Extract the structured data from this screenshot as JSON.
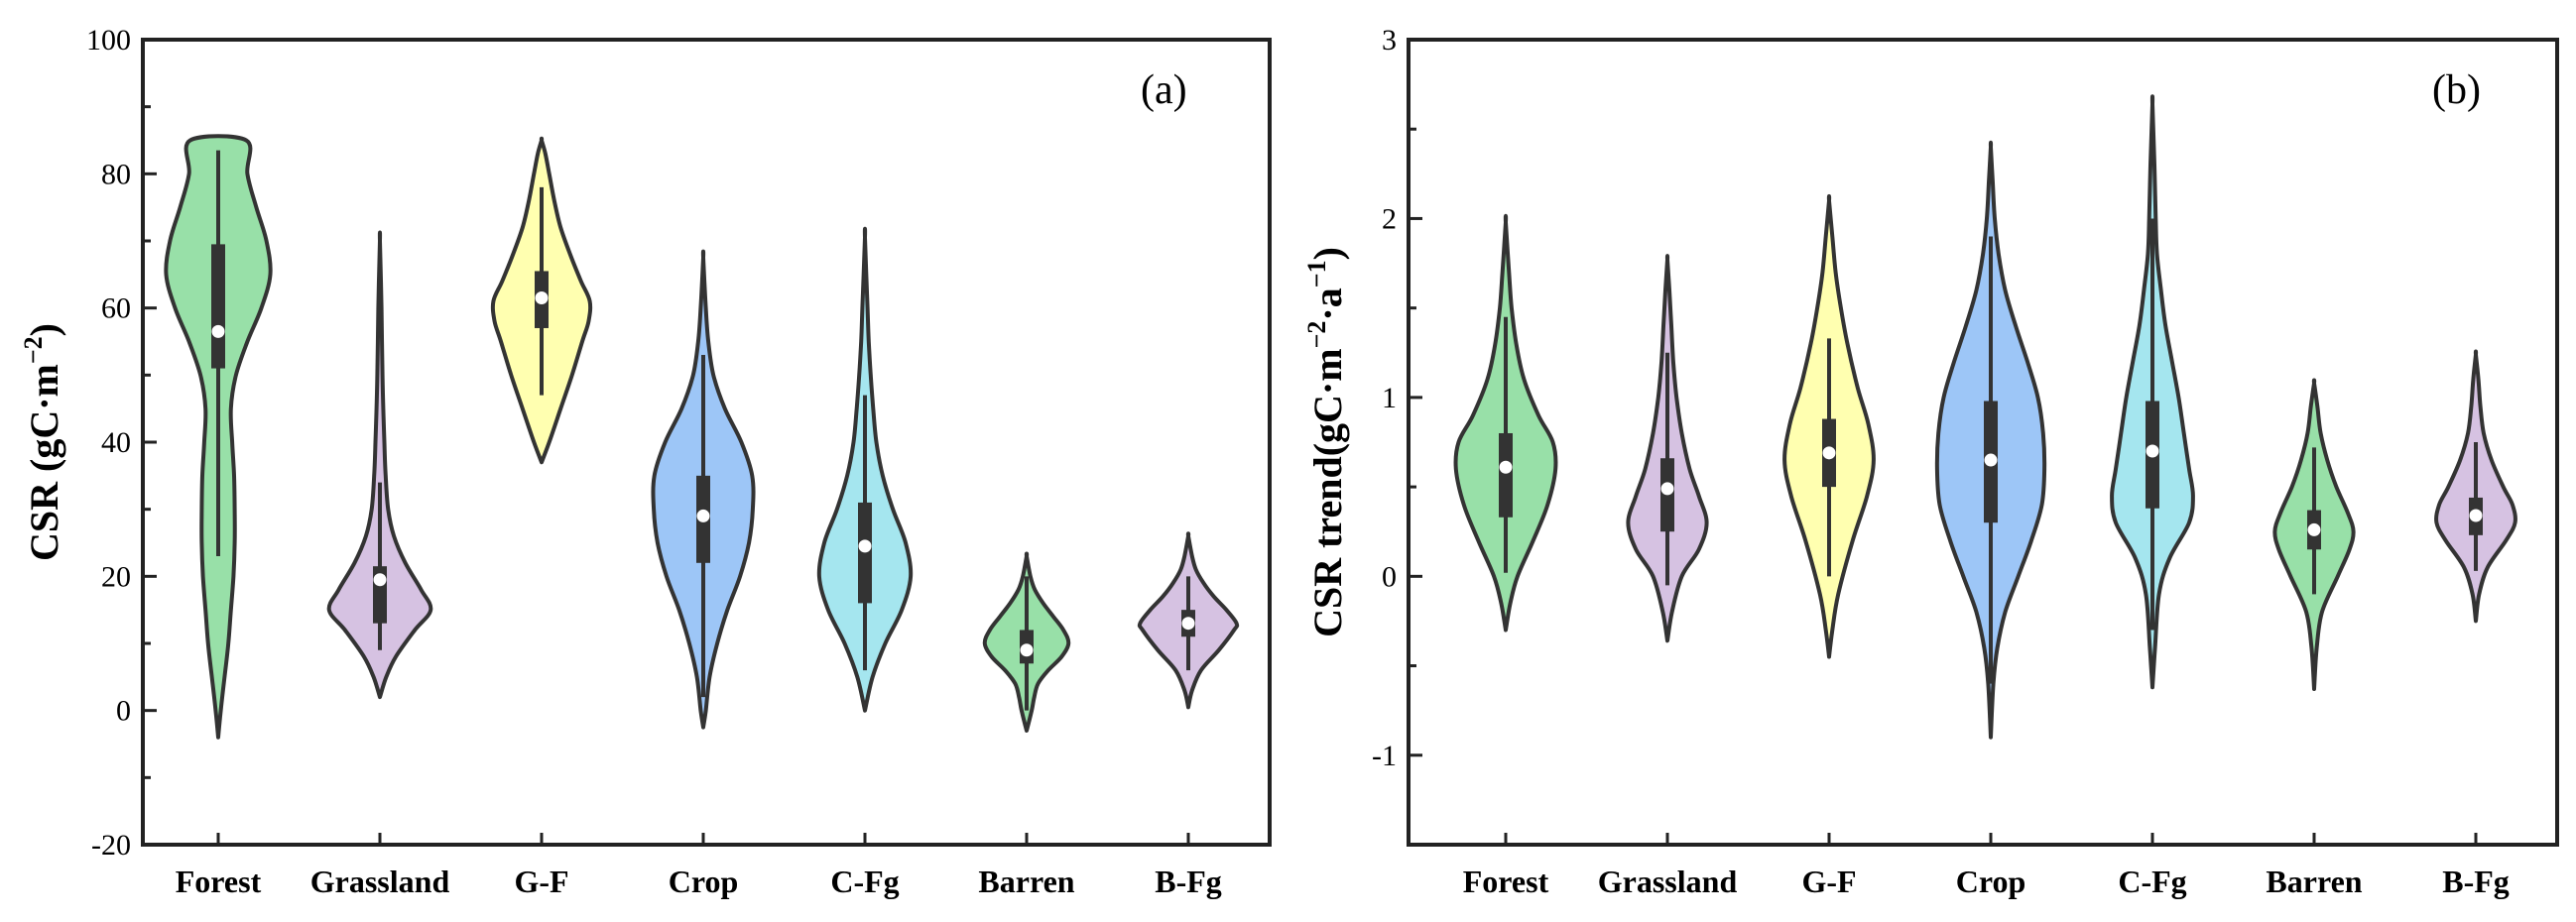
{
  "chart_data": [
    {
      "type": "violin",
      "panel_label": "(a)",
      "ylabel": "CSR (gC·m⁻²)",
      "ylabel_parts": {
        "prefix": "CSR (gC·m",
        "sup": "−2",
        "suffix": ")"
      },
      "ylim": [
        -20,
        100
      ],
      "yticks": [
        -20,
        0,
        20,
        40,
        60,
        80,
        100
      ],
      "categories": [
        "Forest",
        "Grassland",
        "G-F",
        "Crop",
        "C-Fg",
        "Barren",
        "B-Fg"
      ],
      "colors": [
        "#98e0a8",
        "#d6c2e2",
        "#ffffb0",
        "#9dc6f7",
        "#a5e6ef",
        "#98e0a8",
        "#d6c2e2"
      ],
      "violins": [
        {
          "min": -4,
          "max": 85,
          "q1": 51,
          "median": 56.5,
          "q3": 69.5,
          "wlo": 23,
          "whi": 83.5,
          "profile": [
            [
              -4,
              0.0
            ],
            [
              0,
              0.04
            ],
            [
              5,
              0.1
            ],
            [
              10,
              0.16
            ],
            [
              15,
              0.2
            ],
            [
              20,
              0.24
            ],
            [
              25,
              0.26
            ],
            [
              30,
              0.26
            ],
            [
              35,
              0.25
            ],
            [
              40,
              0.22
            ],
            [
              45,
              0.2
            ],
            [
              50,
              0.28
            ],
            [
              55,
              0.46
            ],
            [
              60,
              0.68
            ],
            [
              65,
              0.82
            ],
            [
              70,
              0.76
            ],
            [
              75,
              0.6
            ],
            [
              80,
              0.46
            ],
            [
              85,
              0.44
            ]
          ]
        },
        {
          "min": 2,
          "max": 70,
          "q1": 13,
          "median": 19.5,
          "q3": 21.5,
          "wlo": 9,
          "whi": 34,
          "profile": [
            [
              2,
              0.0
            ],
            [
              5,
              0.1
            ],
            [
              8,
              0.25
            ],
            [
              12,
              0.55
            ],
            [
              15,
              0.8
            ],
            [
              18,
              0.65
            ],
            [
              22,
              0.4
            ],
            [
              26,
              0.22
            ],
            [
              30,
              0.13
            ],
            [
              35,
              0.09
            ],
            [
              40,
              0.07
            ],
            [
              50,
              0.04
            ],
            [
              60,
              0.025
            ],
            [
              70,
              0.0
            ]
          ]
        },
        {
          "min": 37,
          "max": 85,
          "q1": 57,
          "median": 61.5,
          "q3": 65.5,
          "wlo": 47,
          "whi": 78,
          "profile": [
            [
              37,
              0.0
            ],
            [
              40,
              0.12
            ],
            [
              45,
              0.3
            ],
            [
              50,
              0.48
            ],
            [
              55,
              0.64
            ],
            [
              58,
              0.74
            ],
            [
              61,
              0.76
            ],
            [
              64,
              0.62
            ],
            [
              68,
              0.45
            ],
            [
              72,
              0.3
            ],
            [
              76,
              0.2
            ],
            [
              80,
              0.12
            ],
            [
              83,
              0.06
            ],
            [
              85,
              0.0
            ]
          ]
        },
        {
          "min": -2.5,
          "max": 67.5,
          "q1": 22,
          "median": 29,
          "q3": 35,
          "wlo": 2,
          "whi": 53,
          "profile": [
            [
              -2.5,
              0.0
            ],
            [
              0,
              0.04
            ],
            [
              5,
              0.1
            ],
            [
              10,
              0.22
            ],
            [
              15,
              0.38
            ],
            [
              20,
              0.58
            ],
            [
              25,
              0.72
            ],
            [
              30,
              0.78
            ],
            [
              35,
              0.77
            ],
            [
              40,
              0.6
            ],
            [
              45,
              0.34
            ],
            [
              50,
              0.16
            ],
            [
              55,
              0.08
            ],
            [
              60,
              0.04
            ],
            [
              67.5,
              0.0
            ]
          ]
        },
        {
          "min": 0,
          "max": 70.5,
          "q1": 16,
          "median": 24.5,
          "q3": 31,
          "wlo": 6,
          "whi": 47,
          "profile": [
            [
              0,
              0.0
            ],
            [
              5,
              0.12
            ],
            [
              10,
              0.32
            ],
            [
              15,
              0.58
            ],
            [
              20,
              0.72
            ],
            [
              25,
              0.64
            ],
            [
              30,
              0.44
            ],
            [
              35,
              0.28
            ],
            [
              40,
              0.18
            ],
            [
              45,
              0.13
            ],
            [
              50,
              0.09
            ],
            [
              55,
              0.06
            ],
            [
              60,
              0.04
            ],
            [
              70.5,
              0.0
            ]
          ]
        },
        {
          "min": -3,
          "max": 23,
          "q1": 7,
          "median": 9,
          "q3": 12,
          "wlo": 0,
          "whi": 20,
          "profile": [
            [
              -3,
              0.0
            ],
            [
              0,
              0.08
            ],
            [
              2,
              0.12
            ],
            [
              4,
              0.18
            ],
            [
              6,
              0.34
            ],
            [
              8,
              0.55
            ],
            [
              10,
              0.66
            ],
            [
              12,
              0.58
            ],
            [
              14,
              0.42
            ],
            [
              16,
              0.26
            ],
            [
              18,
              0.13
            ],
            [
              20,
              0.06
            ],
            [
              23,
              0.0
            ]
          ]
        },
        {
          "min": 0.5,
          "max": 26,
          "q1": 11,
          "median": 13,
          "q3": 15,
          "wlo": 6,
          "whi": 20,
          "profile": [
            [
              0.5,
              0.0
            ],
            [
              3,
              0.06
            ],
            [
              6,
              0.2
            ],
            [
              9,
              0.48
            ],
            [
              12,
              0.72
            ],
            [
              13,
              0.76
            ],
            [
              15,
              0.6
            ],
            [
              17,
              0.4
            ],
            [
              19,
              0.24
            ],
            [
              21,
              0.12
            ],
            [
              23,
              0.06
            ],
            [
              26,
              0.0
            ]
          ]
        }
      ]
    },
    {
      "type": "violin",
      "panel_label": "(b)",
      "ylabel": "CSR trend(gC·m⁻²·a⁻¹)",
      "ylabel_parts": {
        "prefix": "CSR trend(gC·m",
        "sup": "−2",
        "mid": "·a",
        "sup2": "−1",
        "suffix": ")"
      },
      "ylim": [
        -1.5,
        3
      ],
      "yticks": [
        -1,
        0,
        1,
        2,
        3
      ],
      "categories": [
        "Forest",
        "Grassland",
        "G-F",
        "Crop",
        "C-Fg",
        "Barren",
        "B-Fg"
      ],
      "colors": [
        "#98e0a8",
        "#d6c2e2",
        "#ffffb0",
        "#9dc6f7",
        "#a5e6ef",
        "#98e0a8",
        "#d6c2e2"
      ],
      "violins": [
        {
          "min": -0.3,
          "max": 1.98,
          "q1": 0.33,
          "median": 0.61,
          "q3": 0.8,
          "wlo": 0.02,
          "whi": 1.45,
          "profile": [
            [
              -0.3,
              0.0
            ],
            [
              -0.15,
              0.07
            ],
            [
              0.0,
              0.18
            ],
            [
              0.2,
              0.42
            ],
            [
              0.4,
              0.64
            ],
            [
              0.6,
              0.76
            ],
            [
              0.75,
              0.72
            ],
            [
              0.9,
              0.5
            ],
            [
              1.1,
              0.28
            ],
            [
              1.3,
              0.16
            ],
            [
              1.5,
              0.09
            ],
            [
              1.7,
              0.05
            ],
            [
              1.98,
              0.0
            ]
          ]
        },
        {
          "min": -0.36,
          "max": 1.77,
          "q1": 0.25,
          "median": 0.49,
          "q3": 0.66,
          "wlo": -0.05,
          "whi": 1.25,
          "profile": [
            [
              -0.36,
              0.0
            ],
            [
              -0.2,
              0.07
            ],
            [
              0.0,
              0.22
            ],
            [
              0.15,
              0.48
            ],
            [
              0.3,
              0.6
            ],
            [
              0.45,
              0.48
            ],
            [
              0.6,
              0.34
            ],
            [
              0.8,
              0.22
            ],
            [
              1.0,
              0.14
            ],
            [
              1.2,
              0.09
            ],
            [
              1.4,
              0.06
            ],
            [
              1.6,
              0.03
            ],
            [
              1.77,
              0.0
            ]
          ]
        },
        {
          "min": -0.45,
          "max": 2.1,
          "q1": 0.5,
          "median": 0.69,
          "q3": 0.88,
          "wlo": 0.0,
          "whi": 1.33,
          "profile": [
            [
              -0.45,
              0.0
            ],
            [
              -0.3,
              0.05
            ],
            [
              -0.1,
              0.14
            ],
            [
              0.2,
              0.36
            ],
            [
              0.45,
              0.58
            ],
            [
              0.65,
              0.68
            ],
            [
              0.85,
              0.6
            ],
            [
              1.05,
              0.44
            ],
            [
              1.3,
              0.28
            ],
            [
              1.5,
              0.18
            ],
            [
              1.7,
              0.1
            ],
            [
              1.9,
              0.05
            ],
            [
              2.1,
              0.0
            ]
          ]
        },
        {
          "min": -0.9,
          "max": 2.4,
          "q1": 0.3,
          "median": 0.65,
          "q3": 0.98,
          "wlo": -0.6,
          "whi": 1.9,
          "profile": [
            [
              -0.9,
              0.0
            ],
            [
              -0.6,
              0.04
            ],
            [
              -0.4,
              0.1
            ],
            [
              -0.2,
              0.22
            ],
            [
              0.0,
              0.42
            ],
            [
              0.2,
              0.62
            ],
            [
              0.4,
              0.78
            ],
            [
              0.6,
              0.82
            ],
            [
              0.8,
              0.8
            ],
            [
              1.0,
              0.72
            ],
            [
              1.2,
              0.56
            ],
            [
              1.4,
              0.38
            ],
            [
              1.6,
              0.22
            ],
            [
              1.8,
              0.12
            ],
            [
              2.0,
              0.06
            ],
            [
              2.2,
              0.03
            ],
            [
              2.4,
              0.0
            ]
          ]
        },
        {
          "min": -0.62,
          "max": 2.64,
          "q1": 0.38,
          "median": 0.7,
          "q3": 0.98,
          "wlo": -0.3,
          "whi": 2.0,
          "profile": [
            [
              -0.62,
              0.0
            ],
            [
              -0.4,
              0.04
            ],
            [
              -0.1,
              0.1
            ],
            [
              0.1,
              0.26
            ],
            [
              0.3,
              0.56
            ],
            [
              0.45,
              0.62
            ],
            [
              0.6,
              0.56
            ],
            [
              0.8,
              0.48
            ],
            [
              1.0,
              0.4
            ],
            [
              1.2,
              0.3
            ],
            [
              1.4,
              0.2
            ],
            [
              1.6,
              0.13
            ],
            [
              1.8,
              0.07
            ],
            [
              2.0,
              0.05
            ],
            [
              2.3,
              0.03
            ],
            [
              2.64,
              0.0
            ]
          ]
        },
        {
          "min": -0.63,
          "max": 1.08,
          "q1": 0.15,
          "median": 0.26,
          "q3": 0.37,
          "wlo": -0.1,
          "whi": 0.72,
          "profile": [
            [
              -0.63,
              0.0
            ],
            [
              -0.4,
              0.04
            ],
            [
              -0.2,
              0.12
            ],
            [
              0.0,
              0.36
            ],
            [
              0.15,
              0.54
            ],
            [
              0.25,
              0.6
            ],
            [
              0.35,
              0.52
            ],
            [
              0.5,
              0.34
            ],
            [
              0.65,
              0.2
            ],
            [
              0.8,
              0.1
            ],
            [
              0.95,
              0.05
            ],
            [
              1.08,
              0.0
            ]
          ]
        },
        {
          "min": -0.25,
          "max": 1.24,
          "q1": 0.23,
          "median": 0.34,
          "q3": 0.44,
          "wlo": 0.03,
          "whi": 0.75,
          "profile": [
            [
              -0.25,
              0.0
            ],
            [
              -0.1,
              0.05
            ],
            [
              0.05,
              0.18
            ],
            [
              0.2,
              0.46
            ],
            [
              0.3,
              0.6
            ],
            [
              0.4,
              0.56
            ],
            [
              0.5,
              0.42
            ],
            [
              0.65,
              0.24
            ],
            [
              0.8,
              0.12
            ],
            [
              0.95,
              0.07
            ],
            [
              1.1,
              0.04
            ],
            [
              1.24,
              0.0
            ]
          ]
        }
      ]
    }
  ]
}
